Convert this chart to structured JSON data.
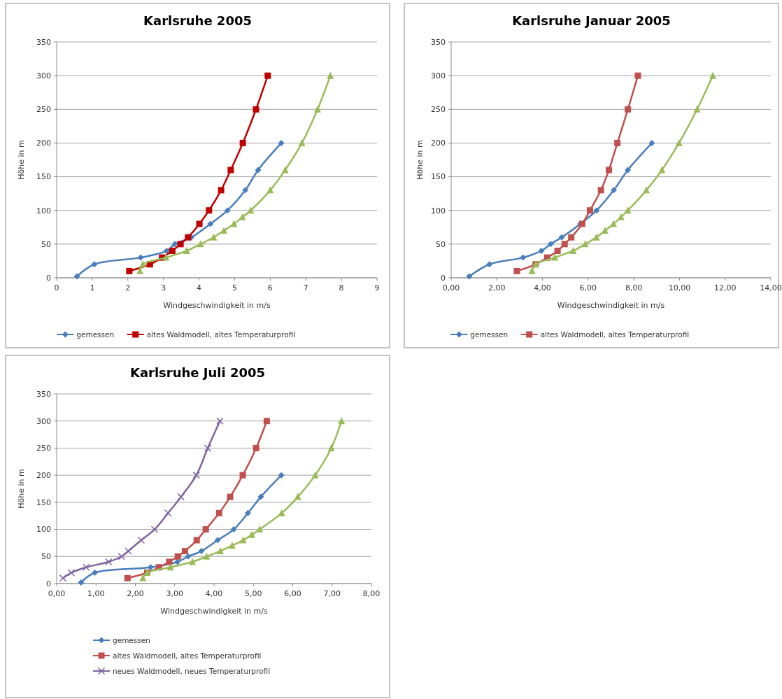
{
  "chart_data": [
    {
      "type": "line",
      "title": "Karlsruhe 2005",
      "xlabel": "Windgeschwindigkeit in m/s",
      "ylabel": "Höhe in m",
      "xlim": [
        0,
        9
      ],
      "xticks": [
        0,
        1,
        2,
        3,
        4,
        5,
        6,
        7,
        8,
        9
      ],
      "ylim": [
        0,
        350
      ],
      "yticks": [
        0,
        50,
        100,
        150,
        200,
        250,
        300,
        350
      ],
      "grid": "y",
      "legend": "bottom",
      "series": [
        {
          "name": "gemessen",
          "color": "#4a7ebb",
          "marker": "diamond",
          "x": [
            0.57,
            1.06,
            2.36,
            3.09,
            3.32,
            3.78,
            4.32,
            4.8,
            5.3,
            5.66,
            6.31
          ],
          "values": [
            2,
            20,
            30,
            40,
            50,
            60,
            80,
            100,
            130,
            160,
            200
          ]
        },
        {
          "name": "altes Waldmodell, altes Temperaturprofil",
          "color": "#c00000",
          "marker": "square",
          "x": [
            2.04,
            2.62,
            2.96,
            3.25,
            3.48,
            3.69,
            4.01,
            4.28,
            4.62,
            4.89,
            5.23,
            5.6,
            5.93
          ],
          "values": [
            10,
            20,
            30,
            40,
            50,
            60,
            80,
            100,
            130,
            160,
            200,
            250,
            300
          ]
        },
        {
          "color": "#9bbb59",
          "marker": "triangle",
          "x": [
            2.34,
            2.42,
            3.07,
            3.65,
            4.04,
            4.41,
            4.7,
            4.98,
            5.22,
            5.45,
            6.0,
            6.42,
            6.89,
            7.33,
            7.69
          ],
          "values": [
            10,
            20,
            30,
            40,
            50,
            60,
            70,
            80,
            90,
            100,
            130,
            160,
            200,
            250,
            300
          ]
        }
      ]
    },
    {
      "type": "line",
      "title": "Karlsruhe Januar 2005",
      "xlabel": "Windgeschwindigkeit in m/s",
      "ylabel": "Höhe in m",
      "xlim": [
        0,
        14
      ],
      "xticks": [
        {
          "value": 0,
          "label": "0,00"
        },
        {
          "value": 2,
          "label": "2,00"
        },
        {
          "value": 4,
          "label": "4,00"
        },
        {
          "value": 6,
          "label": "6,00"
        },
        {
          "value": 8,
          "label": "8,00"
        },
        {
          "value": 10,
          "label": "10,00"
        },
        {
          "value": 12,
          "label": "12,00"
        },
        {
          "value": 14,
          "label": "14,00"
        }
      ],
      "ylim": [
        0,
        350
      ],
      "yticks": [
        0,
        50,
        100,
        150,
        200,
        250,
        300,
        350
      ],
      "grid": "y",
      "legend": "bottom",
      "series": [
        {
          "name": "gemessen",
          "color": "#4a7ebb",
          "marker": "diamond",
          "x": [
            0.79,
            1.68,
            3.15,
            3.95,
            4.36,
            4.84,
            5.66,
            6.37,
            7.12,
            7.74,
            8.79
          ],
          "values": [
            2,
            20,
            30,
            40,
            50,
            60,
            80,
            100,
            130,
            160,
            200
          ]
        },
        {
          "name": "altes Waldmodell, altes Temperaturprofil",
          "color": "#c0504d",
          "marker": "square",
          "x": [
            2.88,
            3.7,
            4.21,
            4.66,
            4.97,
            5.26,
            5.74,
            6.08,
            6.56,
            6.91,
            7.28,
            7.74,
            8.18
          ],
          "values": [
            10,
            20,
            30,
            40,
            50,
            60,
            80,
            100,
            130,
            160,
            200,
            250,
            300
          ]
        },
        {
          "color": "#9bbb59",
          "marker": "triangle",
          "x": [
            3.54,
            3.7,
            4.54,
            5.34,
            5.87,
            6.36,
            6.74,
            7.11,
            7.44,
            7.74,
            8.55,
            9.23,
            9.98,
            10.77,
            11.46
          ],
          "values": [
            10,
            20,
            30,
            40,
            50,
            60,
            70,
            80,
            90,
            100,
            130,
            160,
            200,
            250,
            300
          ]
        }
      ]
    },
    {
      "type": "line",
      "title": "Karlsruhe Juli 2005",
      "xlabel": "Windgeschwindigkeit in m/s",
      "ylabel": "Höhe in m",
      "xlim": [
        0,
        8
      ],
      "xticks": [
        {
          "value": 0,
          "label": "0,00"
        },
        {
          "value": 1,
          "label": "1,00"
        },
        {
          "value": 2,
          "label": "2,00"
        },
        {
          "value": 3,
          "label": "3,00"
        },
        {
          "value": 4,
          "label": "4,00"
        },
        {
          "value": 5,
          "label": "5,00"
        },
        {
          "value": 6,
          "label": "6,00"
        },
        {
          "value": 7,
          "label": "7,00"
        },
        {
          "value": 8,
          "label": "8,00"
        }
      ],
      "ylim": [
        0,
        350
      ],
      "yticks": [
        0,
        50,
        100,
        150,
        200,
        250,
        300,
        350
      ],
      "grid": "y",
      "legend": "bottom",
      "series": [
        {
          "name": "gemessen",
          "color": "#4a7ebb",
          "marker": "diamond",
          "x": [
            0.62,
            0.97,
            2.39,
            3.07,
            3.34,
            3.68,
            4.09,
            4.5,
            4.86,
            5.19,
            5.71
          ],
          "values": [
            2,
            20,
            30,
            40,
            50,
            60,
            80,
            100,
            130,
            160,
            200
          ]
        },
        {
          "name": "altes Waldmodell, altes Temperaturprofil",
          "color": "#c0504d",
          "marker": "square",
          "x": [
            1.8,
            2.3,
            2.6,
            2.86,
            3.08,
            3.26,
            3.56,
            3.79,
            4.13,
            4.41,
            4.73,
            5.07,
            5.34
          ],
          "values": [
            10,
            20,
            30,
            40,
            50,
            60,
            80,
            100,
            130,
            160,
            200,
            250,
            300
          ]
        },
        {
          "color": "#9bbb59",
          "marker": "triangle",
          "x": [
            2.19,
            2.3,
            2.89,
            3.45,
            3.81,
            4.16,
            4.46,
            4.74,
            4.96,
            5.16,
            5.72,
            6.13,
            6.57,
            6.98,
            7.24
          ],
          "values": [
            10,
            20,
            30,
            40,
            50,
            60,
            70,
            80,
            90,
            100,
            130,
            160,
            200,
            250,
            300
          ]
        },
        {
          "name": "neues Waldmodell, neues Temperaturprofil",
          "color": "#8064a2",
          "marker": "cross",
          "x": [
            0.16,
            0.37,
            0.75,
            1.32,
            1.65,
            1.82,
            2.15,
            2.49,
            2.83,
            3.16,
            3.55,
            3.84,
            4.15
          ],
          "values": [
            10,
            20,
            30,
            40,
            50,
            60,
            80,
            100,
            130,
            160,
            200,
            250,
            300
          ]
        }
      ]
    }
  ]
}
